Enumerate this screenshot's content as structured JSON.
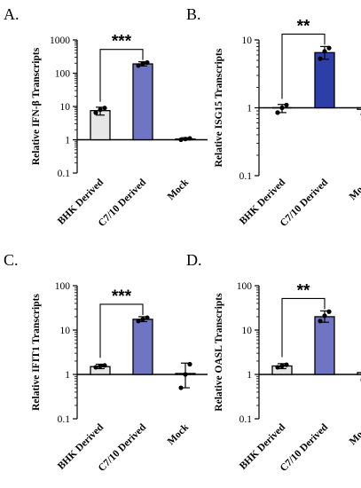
{
  "chart_data": [
    {
      "panel": "A.",
      "type": "bar",
      "ylabel": "Relative IFN-β Transcripts",
      "yscale": "log",
      "ylim": [
        0.1,
        1000
      ],
      "yticks": [
        "0.1",
        "1",
        "10",
        "100",
        "1000"
      ],
      "categories": [
        "BHK Derived",
        "C7/10 Derived",
        "Mock"
      ],
      "values": [
        7.5,
        190,
        1.05
      ],
      "errors_low": [
        5.5,
        165,
        1.0
      ],
      "errors_high": [
        9.5,
        220,
        1.15
      ],
      "points": [
        [
          6.5,
          8.0,
          9.0
        ],
        [
          170,
          195,
          210
        ],
        [
          1.0,
          1.05,
          1.1
        ]
      ],
      "significance": "***",
      "colors": [
        "#e6e6e6",
        "#6f75c2",
        "#ffffff"
      ]
    },
    {
      "panel": "B.",
      "type": "bar",
      "ylabel": "Relative ISG15 Transcripts",
      "yscale": "log",
      "ylim": [
        0.1,
        10
      ],
      "yticks": [
        "0.1",
        "1",
        "10"
      ],
      "categories": [
        "BHK Derived",
        "C7/10 Derived",
        "Mock"
      ],
      "values": [
        1.0,
        6.5,
        0.95
      ],
      "errors_low": [
        0.85,
        5.2,
        0.82
      ],
      "errors_high": [
        1.12,
        8.0,
        1.08
      ],
      "points": [
        [
          0.85,
          1.0,
          1.1
        ],
        [
          5.3,
          6.8,
          7.6
        ],
        [
          0.85,
          0.95,
          1.05
        ]
      ],
      "significance": "**",
      "colors": [
        "#e6e6e6",
        "#2e3ea8",
        "#ffffff"
      ]
    },
    {
      "panel": "C.",
      "type": "bar",
      "ylabel": "Relative IFIT1 Transcripts",
      "yscale": "log",
      "ylim": [
        0.1,
        100
      ],
      "yticks": [
        "0.1",
        "1",
        "10",
        "100"
      ],
      "categories": [
        "BHK Derived",
        "C7/10 Derived",
        "Mock"
      ],
      "values": [
        1.5,
        17.5,
        1.05
      ],
      "errors_low": [
        1.35,
        15.5,
        0.5
      ],
      "errors_high": [
        1.7,
        20,
        1.8
      ],
      "points": [
        [
          1.45,
          1.55,
          1.6
        ],
        [
          16,
          17.5,
          19
        ],
        [
          0.5,
          1.0,
          1.7
        ]
      ],
      "significance": "***",
      "colors": [
        "#e6e6e6",
        "#6f75c2",
        "#ffffff"
      ]
    },
    {
      "panel": "D.",
      "type": "bar",
      "ylabel": "Relative OASL Transcripts",
      "yscale": "log",
      "ylim": [
        0.1,
        100
      ],
      "yticks": [
        "0.1",
        "1",
        "10",
        "100"
      ],
      "categories": [
        "BHK Derived",
        "C7/10 Derived",
        "Mock"
      ],
      "values": [
        1.55,
        20,
        1.1
      ],
      "errors_low": [
        1.35,
        15,
        0.75
      ],
      "errors_high": [
        1.75,
        27,
        1.4
      ],
      "points": [
        [
          1.45,
          1.55,
          1.65
        ],
        [
          16,
          21,
          26
        ],
        [
          0.75,
          1.1,
          1.3
        ]
      ],
      "significance": "**",
      "colors": [
        "#e6e6e6",
        "#6f75c2",
        "#ffffff"
      ]
    }
  ]
}
